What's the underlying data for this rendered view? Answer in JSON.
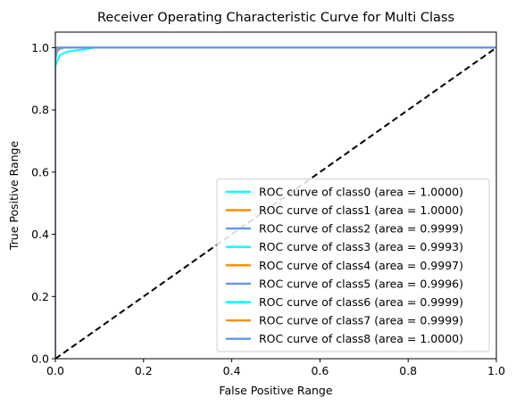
{
  "chart_data": {
    "type": "line",
    "title": "Receiver Operating Characteristic Curve for Multi Class",
    "xlabel": "False Positive Range",
    "ylabel": "True Positive Range",
    "xlim": [
      0.0,
      1.0
    ],
    "ylim": [
      0.0,
      1.05
    ],
    "xticks": [
      "0.0",
      "0.2",
      "0.4",
      "0.6",
      "0.8",
      "1.0"
    ],
    "yticks": [
      "0.0",
      "0.2",
      "0.4",
      "0.6",
      "0.8",
      "1.0"
    ],
    "grid": false,
    "legend_position": "lower-right",
    "series": [
      {
        "name": "ROC curve of class0 (area = 1.0000)",
        "color": "#00ffff",
        "x": [
          0,
          0,
          1
        ],
        "y": [
          0,
          1.0,
          1.0
        ]
      },
      {
        "name": "ROC curve of class1 (area = 1.0000)",
        "color": "#ff8c00",
        "x": [
          0,
          0,
          1
        ],
        "y": [
          0,
          1.0,
          1.0
        ]
      },
      {
        "name": "ROC curve of class2 (area = 0.9999)",
        "color": "#6495ed",
        "x": [
          0,
          0,
          0.002,
          0.005,
          1
        ],
        "y": [
          0,
          0.97,
          0.995,
          1.0,
          1.0
        ]
      },
      {
        "name": "ROC curve of class3 (area = 0.9993)",
        "color": "#00ffff",
        "x": [
          0,
          0,
          0.005,
          0.01,
          0.02,
          0.03,
          0.05,
          0.07,
          0.09,
          1
        ],
        "y": [
          0,
          0.94,
          0.96,
          0.975,
          0.983,
          0.988,
          0.992,
          0.995,
          1.0,
          1.0
        ]
      },
      {
        "name": "ROC curve of class4 (area = 0.9997)",
        "color": "#ff8c00",
        "x": [
          0,
          0,
          0.003,
          0.01,
          0.02,
          1
        ],
        "y": [
          0,
          0.97,
          0.99,
          0.996,
          1.0,
          1.0
        ]
      },
      {
        "name": "ROC curve of class5 (area = 0.9996)",
        "color": "#6495ed",
        "x": [
          0,
          0,
          0.003,
          0.008,
          0.02,
          1
        ],
        "y": [
          0,
          0.96,
          0.985,
          0.995,
          1.0,
          1.0
        ]
      },
      {
        "name": "ROC curve of class6 (area = 0.9999)",
        "color": "#00ffff",
        "x": [
          0,
          0,
          0.002,
          0.005,
          1
        ],
        "y": [
          0,
          0.98,
          0.995,
          1.0,
          1.0
        ]
      },
      {
        "name": "ROC curve of class7 (area = 0.9999)",
        "color": "#ff8c00",
        "x": [
          0,
          0,
          0.002,
          0.005,
          1
        ],
        "y": [
          0,
          0.985,
          0.996,
          1.0,
          1.0
        ]
      },
      {
        "name": "ROC curve of class8 (area = 1.0000)",
        "color": "#6495ed",
        "x": [
          0,
          0,
          1
        ],
        "y": [
          0,
          1.0,
          1.0
        ]
      }
    ],
    "reference_line": {
      "x": [
        0,
        1
      ],
      "y": [
        0,
        1
      ],
      "color": "#000000",
      "style": "dashed"
    }
  }
}
